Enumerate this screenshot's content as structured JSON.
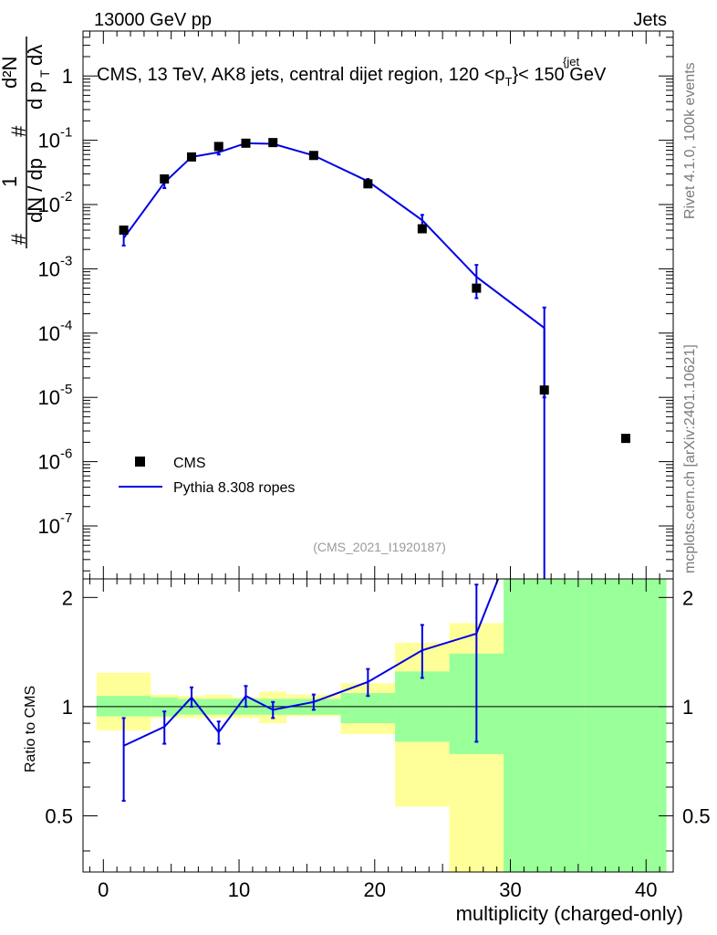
{
  "header": {
    "left": "13000 GeV pp",
    "right": "Jets"
  },
  "side": {
    "rivet": "Rivet 4.1.0,  100k events",
    "mcplots": "mcplots.cern.ch [arXiv:2401.10621]"
  },
  "colors": {
    "mc_line": "#0000e6",
    "band_green": "#99ff99",
    "band_yellow": "#ffff99",
    "data_marker": "#000000"
  },
  "chart_data": [
    {
      "type": "scatter",
      "title": "CMS, 13 TeV, AK8 jets, central dijet region, 120 <p_T^{jet}< 150 GeV",
      "title_parts": {
        "before": "CMS, 13 TeV, AK8 jets, central dijet region, 120 <p",
        "sub": "T",
        "sup": "{jet",
        "after": "}< 150 GeV"
      },
      "ylabel": "# 1 / dN / dp_T  # d²N / dp_T dλ",
      "ylabel_parts": {
        "num": "d²N",
        "numsub": "d p",
        "t": "T",
        "lam": "dλ",
        "one": "1",
        "den": "dN / dp",
        "hash": "#"
      },
      "yscale": "log",
      "ylim": [
        1.5e-08,
        5
      ],
      "xlim": [
        -1.5,
        42
      ],
      "ytick_labels": [
        "1",
        "10^-1",
        "10^-2",
        "10^-3",
        "10^-4",
        "10^-5",
        "10^-6",
        "10^-7"
      ],
      "ytick_exponents": [
        "",
        "-1",
        "-2",
        "-3",
        "-4",
        "-5",
        "-6",
        "-7"
      ],
      "legend": [
        "CMS",
        "Pythia 8.308 ropes"
      ],
      "legend_position": "lower-left",
      "annotation": "(CMS_2021_I1920187)",
      "series": [
        {
          "name": "CMS",
          "x": [
            1.5,
            4.5,
            6.5,
            8.5,
            10.5,
            12.5,
            15.5,
            19.5,
            23.5,
            27.5,
            32.5,
            38.5
          ],
          "y": [
            0.004,
            0.025,
            0.055,
            0.08,
            0.09,
            0.092,
            0.058,
            0.021,
            0.0042,
            0.0005,
            1.3e-05,
            2.3e-06
          ]
        },
        {
          "name": "Pythia 8.308 ropes",
          "x": [
            1.5,
            4.5,
            6.5,
            8.5,
            10.5,
            12.5,
            15.5,
            19.5,
            23.5,
            27.5,
            32.5
          ],
          "y": [
            0.003,
            0.022,
            0.055,
            0.065,
            0.09,
            0.088,
            0.058,
            0.023,
            0.0057,
            0.00075,
            0.00012
          ],
          "err_lo": [
            0.0007,
            0.004,
            0.006,
            0.005,
            0.006,
            0.005,
            0.004,
            0.002,
            0.0012,
            0.0004,
            0.00011
          ],
          "err_hi": [
            0.0007,
            0.004,
            0.006,
            0.005,
            0.006,
            0.005,
            0.004,
            0.002,
            0.0012,
            0.0004,
            0.00013
          ],
          "tail_to": 1e-09
        }
      ]
    },
    {
      "type": "line",
      "ylabel": "Ratio to CMS",
      "xlabel": "multiplicity (charged-only)",
      "xlim": [
        -1.5,
        42
      ],
      "ylim": [
        0.35,
        2.25
      ],
      "xticks": [
        0,
        10,
        20,
        30,
        40
      ],
      "xtick_labels": [
        "0",
        "10",
        "20",
        "30",
        "40"
      ],
      "yticks": [
        0.5,
        1,
        2
      ],
      "ytick_labels": [
        "0.5",
        "1",
        "2"
      ],
      "reference_line": 1,
      "bands": [
        {
          "x0": -0.5,
          "x1": 3.5,
          "y_lo": 0.86,
          "y_hi": 1.24,
          "g_lo": 0.94,
          "g_hi": 1.07
        },
        {
          "x0": 3.5,
          "x1": 5.5,
          "y_lo": 0.93,
          "y_hi": 1.08,
          "g_lo": 0.94,
          "g_hi": 1.06
        },
        {
          "x0": 5.5,
          "x1": 7.5,
          "y_lo": 0.93,
          "y_hi": 1.07,
          "g_lo": 0.95,
          "g_hi": 1.05
        },
        {
          "x0": 7.5,
          "x1": 9.5,
          "y_lo": 0.93,
          "y_hi": 1.08,
          "g_lo": 0.95,
          "g_hi": 1.05
        },
        {
          "x0": 9.5,
          "x1": 11.5,
          "y_lo": 0.93,
          "y_hi": 1.06,
          "g_lo": 0.95,
          "g_hi": 1.05
        },
        {
          "x0": 11.5,
          "x1": 13.5,
          "y_lo": 0.9,
          "y_hi": 1.1,
          "g_lo": 0.95,
          "g_hi": 1.05
        },
        {
          "x0": 13.5,
          "x1": 17.5,
          "y_lo": 0.94,
          "y_hi": 1.08,
          "g_lo": 0.95,
          "g_hi": 1.05
        },
        {
          "x0": 17.5,
          "x1": 21.5,
          "y_lo": 0.84,
          "y_hi": 1.16,
          "g_lo": 0.9,
          "g_hi": 1.09
        },
        {
          "x0": 21.5,
          "x1": 25.5,
          "y_lo": 0.53,
          "y_hi": 1.5,
          "g_lo": 0.8,
          "g_hi": 1.25
        },
        {
          "x0": 25.5,
          "x1": 29.5,
          "y_lo": 0.35,
          "y_hi": 1.7,
          "g_lo": 0.74,
          "g_hi": 1.4
        },
        {
          "x0": 29.5,
          "x1": 35.5,
          "y_lo": 0.35,
          "y_hi": 2.2,
          "g_lo": 0.35,
          "g_hi": 2.25
        },
        {
          "x0": 35.5,
          "x1": 41.5,
          "y_lo": 0.35,
          "y_hi": 2.25,
          "g_lo": 0.35,
          "g_hi": 2.25
        }
      ],
      "series": [
        {
          "name": "Pythia 8.308 ropes",
          "x": [
            1.5,
            4.5,
            6.5,
            8.5,
            10.5,
            12.5,
            15.5,
            19.5,
            23.5,
            27.5
          ],
          "y": [
            0.78,
            0.88,
            1.06,
            0.85,
            1.07,
            0.98,
            1.03,
            1.17,
            1.43,
            1.59
          ],
          "err_lo": [
            0.23,
            0.09,
            0.06,
            0.06,
            0.07,
            0.05,
            0.05,
            0.1,
            0.23,
            0.79
          ],
          "err_hi": [
            0.15,
            0.09,
            0.07,
            0.06,
            0.07,
            0.05,
            0.05,
            0.1,
            0.25,
            0.58
          ],
          "tail_x": 29.2,
          "tail_y": 2.3
        }
      ]
    }
  ]
}
